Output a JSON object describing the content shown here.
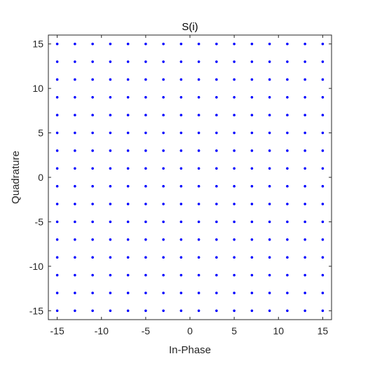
{
  "chart_data": {
    "type": "scatter",
    "title": "S(i)",
    "xlabel": "In-Phase",
    "ylabel": "Quadrature",
    "xlim": [
      -16,
      16
    ],
    "ylim": [
      -16,
      16
    ],
    "x_ticks": [
      -15,
      -10,
      -5,
      0,
      5,
      10,
      15
    ],
    "y_ticks": [
      -15,
      -10,
      -5,
      0,
      5,
      10,
      15
    ],
    "x_tick_labels": [
      "-15",
      "-10",
      "-5",
      "0",
      "5",
      "10",
      "15"
    ],
    "y_tick_labels": [
      "-15",
      "-10",
      "-5",
      "0",
      "5",
      "10",
      "15"
    ],
    "grid": false,
    "marker_color": "#0000ff",
    "axis_color": "#262626",
    "series": [
      {
        "x_levels": [
          -15,
          -13,
          -11,
          -9,
          -7,
          -5,
          -3,
          -1,
          1,
          3,
          5,
          7,
          9,
          11,
          13,
          15
        ],
        "y_levels": [
          -15,
          -13,
          -11,
          -9,
          -7,
          -5,
          -3,
          -1,
          1,
          3,
          5,
          7,
          9,
          11,
          13,
          15
        ]
      }
    ]
  }
}
